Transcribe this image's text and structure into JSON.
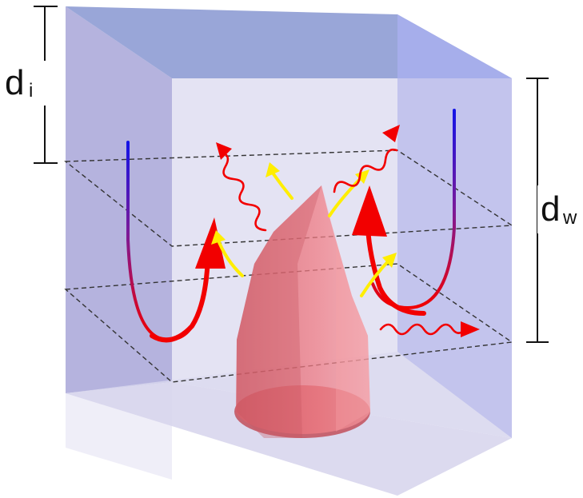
{
  "labels": {
    "d_i_main": "d",
    "d_i_sub": "i",
    "d_w_main": "d",
    "d_w_sub": "w"
  },
  "colors": {
    "box_front": "#c9c9ee",
    "box_top": "#8fa0d8",
    "box_side": "#9ea8ec",
    "box_bottom": "#dcdcf2",
    "pillar": "#e8767c",
    "red_arrow": "#f20000",
    "yellow_arrow": "#ffee00",
    "curve_top": "#1010e0",
    "curve_bottom": "#f00000",
    "dashed_plane": "#333333",
    "dimension_line": "#111111"
  },
  "icons": {
    "wavy_arrows": "wavy-arrow-icon",
    "curved_arrows": "curved-arrow-icon"
  }
}
